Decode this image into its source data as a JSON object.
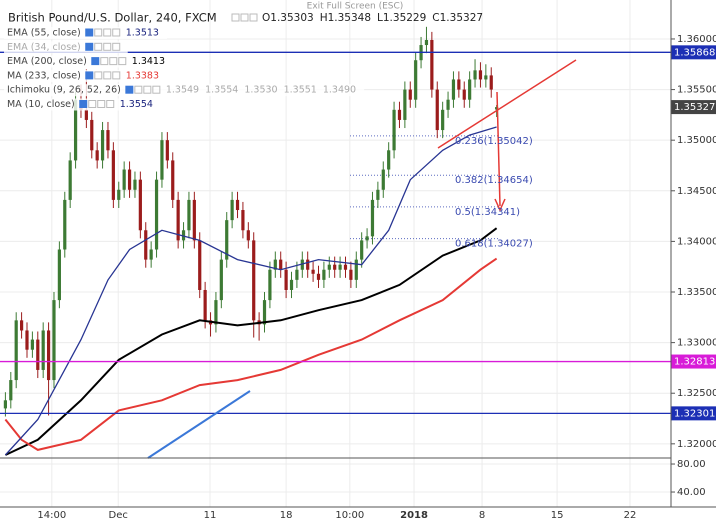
{
  "header": {
    "title": "British Pound/U.S. Dollar, 240, FXCM",
    "ohlc": [
      "O1.35303",
      "H1.35348",
      "L1.35229",
      "C1.35327"
    ],
    "exit": "Exit Full Screen (ESC)"
  },
  "indicators": [
    {
      "name": "EMA (55, close)",
      "values": [
        "1.3513"
      ],
      "color": "#1a237e"
    },
    {
      "name": "EMA (34, close)",
      "values": [],
      "color": "#bbbbbb"
    },
    {
      "name": "EMA (200, close)",
      "values": [
        "1.3413"
      ],
      "color": "#000000"
    },
    {
      "name": "MA (233, close)",
      "values": [
        "1.3383"
      ],
      "color": "#e53935"
    },
    {
      "name": "Ichimoku (9, 26, 52, 26)",
      "values": [
        "1.3549",
        "1.3554",
        "1.3530",
        "1.3551",
        "1.3490"
      ],
      "color": "#999999"
    },
    {
      "name": "MA (10, close)",
      "values": [
        "1.3554"
      ],
      "color": "#1a237e"
    }
  ],
  "chart_data": {
    "type": "candlestick",
    "up_color": "#3d7a34",
    "down_color": "#9b1c1c",
    "open": [
      1.3235,
      1.3243,
      1.3263,
      1.3322,
      1.3312,
      1.3293,
      1.3303,
      1.3273,
      1.3312,
      1.3263,
      1.3342,
      1.3392,
      1.3441,
      1.348,
      1.354,
      1.353,
      1.352,
      1.349,
      1.348,
      1.351,
      1.349,
      1.3441,
      1.3451,
      1.3471,
      1.3451,
      1.3461,
      1.3411,
      1.3382,
      1.3392,
      1.3461,
      1.35,
      1.348,
      1.3441,
      1.3401,
      1.3411,
      1.3441,
      1.3401,
      1.3352,
      1.3322,
      1.3318,
      1.3342,
      1.3382,
      1.3421,
      1.3441,
      1.3431,
      1.3411,
      1.3401,
      1.3322,
      1.3318,
      1.3342,
      1.3372,
      1.3382,
      1.3372,
      1.3352,
      1.3362,
      1.3372,
      1.3382,
      1.3372,
      1.3368,
      1.3362,
      1.3372,
      1.3377,
      1.3372,
      1.3377,
      1.3372,
      1.3362,
      1.3382,
      1.3401,
      1.3405,
      1.3441,
      1.3451,
      1.3471,
      1.349,
      1.353,
      1.352,
      1.355,
      1.354,
      1.3579,
      1.3594,
      1.3599,
      1.355,
      1.351,
      1.353,
      1.354,
      1.356,
      1.355,
      1.354,
      1.356,
      1.3569,
      1.356,
      1.3564,
      1.35303
    ],
    "high": [
      1.3251,
      1.3271,
      1.333,
      1.333,
      1.332,
      1.3311,
      1.3311,
      1.332,
      1.332,
      1.335,
      1.34,
      1.3449,
      1.3488,
      1.3548,
      1.3555,
      1.357,
      1.3528,
      1.3498,
      1.3518,
      1.3518,
      1.3498,
      1.3459,
      1.3479,
      1.3479,
      1.3469,
      1.3469,
      1.3419,
      1.34,
      1.3469,
      1.3508,
      1.3508,
      1.3488,
      1.3449,
      1.3419,
      1.3449,
      1.3449,
      1.3409,
      1.336,
      1.333,
      1.335,
      1.339,
      1.3429,
      1.3449,
      1.3449,
      1.3439,
      1.3419,
      1.3409,
      1.333,
      1.335,
      1.338,
      1.339,
      1.339,
      1.338,
      1.337,
      1.338,
      1.339,
      1.339,
      1.338,
      1.3376,
      1.338,
      1.3385,
      1.3385,
      1.3385,
      1.3385,
      1.338,
      1.339,
      1.3409,
      1.3413,
      1.3449,
      1.3459,
      1.3479,
      1.3498,
      1.3538,
      1.3538,
      1.3558,
      1.3558,
      1.3587,
      1.3602,
      1.3612,
      1.3607,
      1.3558,
      1.3538,
      1.3548,
      1.3568,
      1.3568,
      1.3558,
      1.3568,
      1.358,
      1.3577,
      1.3575,
      1.3572,
      1.35348
    ],
    "low": [
      1.3227,
      1.3235,
      1.3255,
      1.3304,
      1.3285,
      1.3285,
      1.3265,
      1.3265,
      1.3228,
      1.3255,
      1.3334,
      1.3384,
      1.3433,
      1.3472,
      1.3522,
      1.3512,
      1.3482,
      1.3472,
      1.3472,
      1.3482,
      1.3433,
      1.3433,
      1.3443,
      1.3443,
      1.3443,
      1.3403,
      1.3374,
      1.3374,
      1.3384,
      1.3453,
      1.3472,
      1.3433,
      1.3393,
      1.3393,
      1.3403,
      1.3393,
      1.3344,
      1.3314,
      1.3306,
      1.331,
      1.3334,
      1.3374,
      1.3413,
      1.3423,
      1.3403,
      1.3393,
      1.3305,
      1.3302,
      1.331,
      1.3334,
      1.3364,
      1.3364,
      1.3344,
      1.3344,
      1.3354,
      1.3364,
      1.3364,
      1.336,
      1.3354,
      1.3354,
      1.3364,
      1.3364,
      1.3364,
      1.3364,
      1.3354,
      1.3354,
      1.3374,
      1.3393,
      1.3397,
      1.3433,
      1.3443,
      1.3463,
      1.3482,
      1.3512,
      1.3512,
      1.3532,
      1.3532,
      1.3571,
      1.3586,
      1.3542,
      1.3502,
      1.3502,
      1.3522,
      1.3532,
      1.3542,
      1.3532,
      1.3532,
      1.3552,
      1.3552,
      1.3552,
      1.3542,
      1.35229
    ],
    "close": [
      1.3243,
      1.3263,
      1.3322,
      1.3312,
      1.3293,
      1.3303,
      1.3273,
      1.3312,
      1.3263,
      1.3342,
      1.3392,
      1.3441,
      1.348,
      1.354,
      1.353,
      1.352,
      1.349,
      1.348,
      1.351,
      1.349,
      1.3441,
      1.3451,
      1.3471,
      1.3451,
      1.3461,
      1.3411,
      1.3382,
      1.3392,
      1.3461,
      1.35,
      1.348,
      1.3441,
      1.3401,
      1.3411,
      1.3441,
      1.3401,
      1.3352,
      1.3322,
      1.3318,
      1.3342,
      1.3382,
      1.3421,
      1.3441,
      1.3431,
      1.3411,
      1.3401,
      1.3322,
      1.3318,
      1.3342,
      1.3372,
      1.3382,
      1.3372,
      1.3352,
      1.3362,
      1.3372,
      1.3382,
      1.3372,
      1.3368,
      1.3362,
      1.3372,
      1.3377,
      1.3372,
      1.3377,
      1.3372,
      1.3362,
      1.3382,
      1.3401,
      1.3405,
      1.3441,
      1.3451,
      1.3471,
      1.349,
      1.353,
      1.352,
      1.355,
      1.354,
      1.3579,
      1.3594,
      1.3599,
      1.355,
      1.351,
      1.353,
      1.354,
      1.356,
      1.355,
      1.354,
      1.356,
      1.3569,
      1.356,
      1.3564,
      1.355,
      1.35327
    ],
    "lines": [
      {
        "color": "#000000",
        "x": [
          1,
          7,
          15,
          22,
          30,
          37,
          44,
          52,
          59,
          67,
          74,
          82,
          89,
          92
        ],
        "values": [
          1.3189,
          1.3204,
          1.3243,
          1.3283,
          1.3308,
          1.3322,
          1.3317,
          1.3322,
          1.3332,
          1.3342,
          1.3357,
          1.3386,
          1.3401,
          1.3413
        ]
      },
      {
        "color": "#e53935",
        "x": [
          1,
          4,
          7,
          15,
          22,
          30,
          37,
          44,
          52,
          59,
          67,
          74,
          82,
          89,
          92
        ],
        "values": [
          1.3224,
          1.3204,
          1.3194,
          1.3204,
          1.3233,
          1.3243,
          1.3258,
          1.3263,
          1.3273,
          1.3288,
          1.3303,
          1.3322,
          1.3342,
          1.3372,
          1.3383
        ]
      },
      {
        "color": "#283593",
        "x": [
          1,
          7,
          15,
          20,
          24,
          30,
          37,
          44,
          52,
          59,
          67,
          72,
          76,
          82,
          87,
          92
        ],
        "values": [
          1.3189,
          1.3224,
          1.3303,
          1.3362,
          1.3392,
          1.3411,
          1.3401,
          1.3382,
          1.3372,
          1.3382,
          1.3377,
          1.3411,
          1.3461,
          1.349,
          1.3505,
          1.3513
        ]
      }
    ],
    "levels": [
      {
        "value": 1.35868,
        "color": "#1c2fb5"
      },
      {
        "value": 1.35327,
        "color": "#444444"
      },
      {
        "value": 1.32813,
        "color": "#d81bd8"
      },
      {
        "value": 1.32301,
        "color": "#1c2fb5"
      }
    ],
    "fib": [
      {
        "label": "0.236(1.35042)",
        "value": 1.35042
      },
      {
        "label": "0.382(1.34654)",
        "value": 1.34654
      },
      {
        "label": "0.5(1.34341)",
        "value": 1.34341
      },
      {
        "label": "0.618(1.34027)",
        "value": 1.34027
      }
    ],
    "xlim": [
      0,
      124.3
    ],
    "xticks": [
      {
        "value": 9.6,
        "label": "14:00"
      },
      {
        "value": 21.9,
        "label": "Dec"
      },
      {
        "value": 38.9,
        "label": "11"
      },
      {
        "value": 53,
        "label": "18"
      },
      {
        "value": 64.8,
        "label": "10:00"
      },
      {
        "value": 76.7,
        "label": "2018"
      },
      {
        "value": 89.3,
        "label": "8"
      },
      {
        "value": 103.2,
        "label": "15"
      },
      {
        "value": 116.7,
        "label": "22"
      }
    ],
    "ylim": [
      1.3186,
      1.36385
    ],
    "yticks": [
      {
        "value": 1.32,
        "label": "1.32000"
      },
      {
        "value": 1.325,
        "label": "1.32500"
      },
      {
        "value": 1.33,
        "label": "1.33000"
      },
      {
        "value": 1.335,
        "label": "1.33500"
      },
      {
        "value": 1.34,
        "label": "1.34000"
      },
      {
        "value": 1.345,
        "label": "1.34500"
      },
      {
        "value": 1.35,
        "label": "1.35000"
      },
      {
        "value": 1.355,
        "label": "1.35500"
      },
      {
        "value": 1.36,
        "label": "1.36000"
      }
    ],
    "grid": true,
    "lower_pane": {
      "ylim": [
        18.6,
        88.6
      ],
      "yticks": [
        {
          "value": 40,
          "label": "40.00"
        },
        {
          "value": 80,
          "label": "80.00"
        }
      ]
    }
  }
}
